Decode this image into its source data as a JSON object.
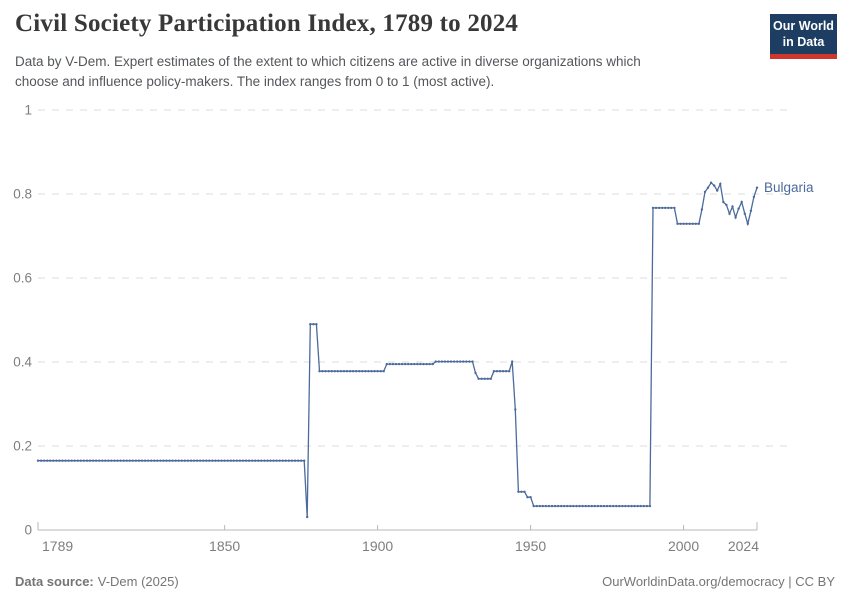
{
  "header": {
    "title": "Civil Society Participation Index, 1789 to 2024",
    "subtitle_line1": "Data by V-Dem. Expert estimates of the extent to which citizens are active in diverse organizations which",
    "subtitle_line2": "choose and influence policy-makers. The index ranges from 0 to 1 (most active).",
    "logo": {
      "line1": "Our World",
      "line2": "in Data",
      "bg_color": "#1d3d63",
      "accent_color": "#cf372c",
      "text_color": "#ffffff"
    }
  },
  "chart_data": {
    "type": "line",
    "title": "Civil Society Participation Index, 1789 to 2024",
    "entity": "Bulgaria",
    "xlabel": "",
    "ylabel": "",
    "xlim": [
      1789,
      2024
    ],
    "ylim": [
      0,
      1
    ],
    "x_ticks": [
      1789,
      1850,
      1900,
      1950,
      2000,
      2024
    ],
    "y_ticks": [
      0,
      0.2,
      0.4,
      0.6,
      0.8,
      1
    ],
    "grid": "horizontal-dashed",
    "legend_position": "end-of-line-label",
    "line_color": "#4c6a9c",
    "marker": "dot-every-year",
    "axis_color": "#b8b8b8",
    "grid_color": "#dedede",
    "tick_label_color": "#7e7e7e",
    "series": [
      {
        "name": "Bulgaria",
        "segments": [
          {
            "from": 1789,
            "to": 1876,
            "value": 0.165
          },
          {
            "from": 1877,
            "to": 1877,
            "value": 0.031
          },
          {
            "from": 1878,
            "to": 1880,
            "value": 0.49
          },
          {
            "from": 1881,
            "to": 1902,
            "value": 0.378
          },
          {
            "from": 1903,
            "to": 1918,
            "value": 0.395
          },
          {
            "from": 1919,
            "to": 1931,
            "value": 0.401
          },
          {
            "from": 1932,
            "to": 1932,
            "value": 0.374
          },
          {
            "from": 1933,
            "to": 1937,
            "value": 0.36
          },
          {
            "from": 1938,
            "to": 1943,
            "value": 0.378
          },
          {
            "from": 1944,
            "to": 1944,
            "value": 0.401
          },
          {
            "from": 1945,
            "to": 1945,
            "value": 0.287
          },
          {
            "from": 1946,
            "to": 1948,
            "value": 0.091
          },
          {
            "from": 1949,
            "to": 1950,
            "value": 0.078
          },
          {
            "from": 1951,
            "to": 1989,
            "value": 0.057
          },
          {
            "from": 1990,
            "to": 1997,
            "value": 0.767
          },
          {
            "from": 1998,
            "to": 2005,
            "value": 0.729
          }
        ],
        "annual_tail": {
          "start_year": 2006,
          "values": [
            0.763,
            0.805,
            0.815,
            0.827,
            0.82,
            0.808,
            0.824,
            0.781,
            0.774,
            0.753,
            0.77,
            0.744,
            0.765,
            0.781,
            0.753,
            0.729,
            0.76,
            0.793,
            0.815
          ]
        }
      }
    ]
  },
  "footer": {
    "source_label": "Data source:",
    "source_value": "V-Dem (2025)",
    "credit": "OurWorldinData.org/democracy | CC BY"
  }
}
